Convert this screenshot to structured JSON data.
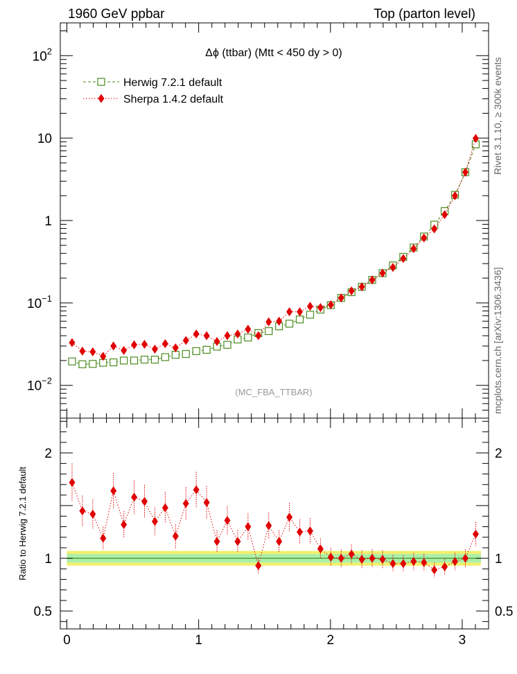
{
  "header": {
    "left": "1960 GeV ppbar",
    "right": "Top (parton level)"
  },
  "side_labels": {
    "rivet": "Rivet 3.1.10, ≥ 300k events",
    "mcplots": "mcplots.cern.ch [arXiv:1306.3436]"
  },
  "chart_data": [
    {
      "type": "scatter",
      "title": "Δϕ (ttbar) (Mtt < 450 dy > 0)",
      "annotation": "(MC_FBA_TTBAR)",
      "ylabel": "",
      "xlabel": "",
      "yscale": "log",
      "xlim": [
        -0.05,
        3.2
      ],
      "ylim": [
        0.004,
        250
      ],
      "y_tick_labels": [
        "10^-2",
        "10^-1",
        "1",
        "10",
        "10^2"
      ],
      "legend": "upper-left",
      "x": [
        0.0393,
        0.1178,
        0.1963,
        0.2749,
        0.3534,
        0.432,
        0.5105,
        0.589,
        0.6676,
        0.7461,
        0.8247,
        0.9032,
        0.9817,
        1.0603,
        1.1388,
        1.2174,
        1.2959,
        1.3744,
        1.453,
        1.5315,
        1.6101,
        1.6886,
        1.7671,
        1.8457,
        1.9242,
        2.0028,
        2.0813,
        2.1598,
        2.2384,
        2.3169,
        2.3955,
        2.474,
        2.5525,
        2.6311,
        2.7096,
        2.7882,
        2.8667,
        2.9452,
        3.0238,
        3.1023
      ],
      "series": [
        {
          "name": "Herwig 7.2.1 default",
          "color": "#4b8b1e",
          "marker": "open-square",
          "line": "dashed",
          "values": [
            0.0195,
            0.018,
            0.0182,
            0.0188,
            0.019,
            0.02,
            0.02,
            0.0205,
            0.0205,
            0.022,
            0.0235,
            0.024,
            0.026,
            0.027,
            0.0295,
            0.031,
            0.036,
            0.038,
            0.043,
            0.0455,
            0.052,
            0.056,
            0.063,
            0.072,
            0.083,
            0.094,
            0.115,
            0.135,
            0.157,
            0.19,
            0.23,
            0.285,
            0.362,
            0.47,
            0.64,
            0.89,
            1.3,
            2.05,
            3.85,
            8.4
          ]
        },
        {
          "name": "Sherpa 1.4.2 default",
          "color": "#e00000",
          "marker": "filled-diamond",
          "line": "dotted",
          "values": [
            0.033,
            0.026,
            0.0255,
            0.0225,
            0.03,
            0.0265,
            0.031,
            0.0315,
            0.0275,
            0.032,
            0.0285,
            0.035,
            0.042,
            0.04,
            0.034,
            0.04,
            0.042,
            0.048,
            0.04,
            0.059,
            0.06,
            0.078,
            0.078,
            0.091,
            0.088,
            0.095,
            0.115,
            0.14,
            0.157,
            0.19,
            0.23,
            0.27,
            0.345,
            0.455,
            0.615,
            0.79,
            1.18,
            2.0,
            3.85,
            9.9
          ]
        }
      ]
    },
    {
      "type": "scatter",
      "ylabel": "Ratio to Herwig 7.2.1 default",
      "xlabel": "",
      "xlim": [
        -0.05,
        3.2
      ],
      "ylim": [
        0.33,
        2.33
      ],
      "y_tick_labels": [
        "0.5",
        "1",
        "2"
      ],
      "x_tick_labels": [
        "0",
        "1",
        "2",
        "3"
      ],
      "reference_band": {
        "inner_color": "#aaf0aa",
        "outer_color": "#f0f070",
        "inner_halfwidth": 0.04,
        "outer_halfwidth": 0.07
      },
      "series": [
        {
          "name": "Sherpa 1.4.2 default",
          "color": "#e00000",
          "marker": "filled-diamond",
          "line": "dotted",
          "values": [
            1.72,
            1.45,
            1.42,
            1.19,
            1.64,
            1.32,
            1.58,
            1.54,
            1.35,
            1.48,
            1.21,
            1.52,
            1.65,
            1.53,
            1.16,
            1.36,
            1.16,
            1.3,
            0.93,
            1.31,
            1.16,
            1.39,
            1.25,
            1.26,
            1.09,
            1.01,
            1.0,
            1.04,
            0.99,
            1.0,
            0.99,
            0.95,
            0.95,
            0.97,
            0.96,
            0.89,
            0.92,
            0.97,
            1.0,
            1.23
          ]
        }
      ]
    }
  ]
}
